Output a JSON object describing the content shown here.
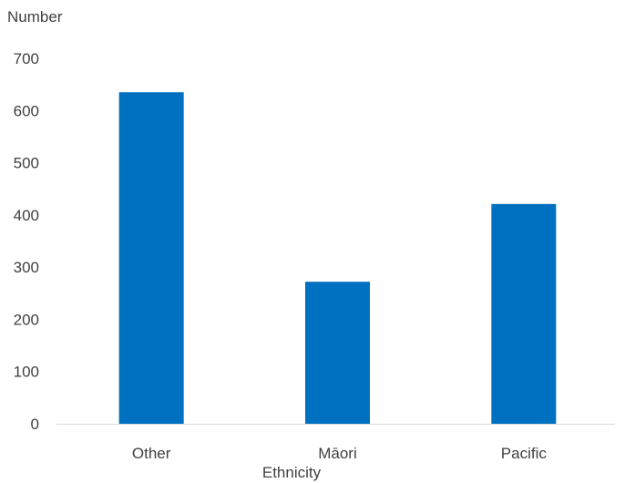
{
  "chart_data": {
    "type": "bar",
    "categories": [
      "Other",
      "Māori",
      "Pacific"
    ],
    "values": [
      635,
      272,
      421
    ],
    "ylabel": "Number",
    "xlabel": "Ethnicity",
    "ylim": [
      0,
      700
    ],
    "yticks": [
      0,
      100,
      200,
      300,
      400,
      500,
      600,
      700
    ],
    "grid": false,
    "legend": "none",
    "bar_color": "#0070C0",
    "axis_color": "#D9D9D9",
    "text_color": "#404040"
  }
}
